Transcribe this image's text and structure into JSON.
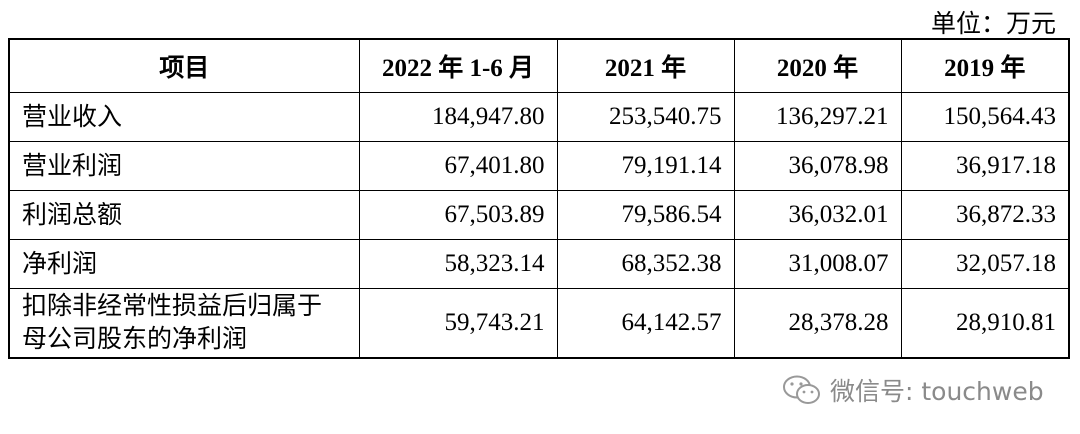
{
  "unit": "单位：万元",
  "table": {
    "header": [
      "项目",
      "2022 年 1-6 月",
      "2021 年",
      "2020 年",
      "2019 年"
    ],
    "rows": [
      [
        "营业收入",
        "184,947.80",
        "253,540.75",
        "136,297.21",
        "150,564.43"
      ],
      [
        "营业利润",
        "67,401.80",
        "79,191.14",
        "36,078.98",
        "36,917.18"
      ],
      [
        "利润总额",
        "67,503.89",
        "79,586.54",
        "36,032.01",
        "36,872.33"
      ],
      [
        "净利润",
        "58,323.14",
        "68,352.38",
        "31,008.07",
        "32,057.18"
      ],
      [
        "扣除非经常性损益后归属于母公司股东的净利润",
        "59,743.21",
        "64,142.57",
        "28,378.28",
        "28,910.81"
      ]
    ]
  },
  "watermark": "微信号: touchweb"
}
